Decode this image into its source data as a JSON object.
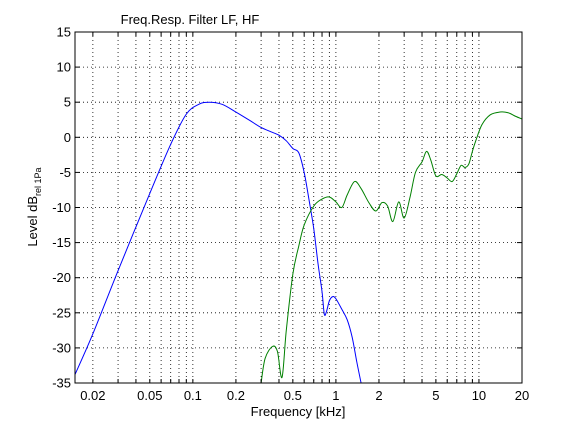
{
  "chart_data": {
    "type": "line",
    "title": "Freq.Resp. Filter LF, HF",
    "xlabel": "Frequency [kHz]",
    "ylabel": {
      "main": "Level dB",
      "subscript": "rel 1Pa"
    },
    "xscale": "log",
    "xlim": [
      0.015,
      20
    ],
    "ylim": [
      -35,
      15
    ],
    "grid": true,
    "x_ticks": [
      0.02,
      0.05,
      0.1,
      0.2,
      0.5,
      1,
      2,
      5,
      10,
      20
    ],
    "x_tick_labels": [
      "0.02",
      "0.05",
      "0.1",
      "0.2",
      "0.5",
      "1",
      "2",
      "5",
      "10",
      "20"
    ],
    "y_ticks": [
      -35,
      -30,
      -25,
      -20,
      -15,
      -10,
      -5,
      0,
      5,
      10,
      15
    ],
    "y_tick_labels": [
      "-35",
      "-30",
      "-25",
      "-20",
      "-15",
      "-10",
      "-5",
      "0",
      "5",
      "10",
      "15"
    ],
    "series": [
      {
        "color": "#0000ff",
        "points": [
          [
            0.015,
            -33.8
          ],
          [
            0.02,
            -28
          ],
          [
            0.03,
            -19
          ],
          [
            0.05,
            -8
          ],
          [
            0.07,
            -1
          ],
          [
            0.09,
            3.3
          ],
          [
            0.11,
            4.7
          ],
          [
            0.13,
            5.0
          ],
          [
            0.16,
            4.7
          ],
          [
            0.2,
            3.6
          ],
          [
            0.25,
            2.4
          ],
          [
            0.3,
            1.4
          ],
          [
            0.35,
            0.8
          ],
          [
            0.4,
            0.3
          ],
          [
            0.45,
            -0.5
          ],
          [
            0.5,
            -1.6
          ],
          [
            0.55,
            -2.2
          ],
          [
            0.6,
            -5
          ],
          [
            0.65,
            -9
          ],
          [
            0.7,
            -13
          ],
          [
            0.75,
            -18
          ],
          [
            0.8,
            -22
          ],
          [
            0.83,
            -25.2
          ],
          [
            0.86,
            -24.8
          ],
          [
            0.9,
            -23.3
          ],
          [
            0.95,
            -22.7
          ],
          [
            1.0,
            -23
          ],
          [
            1.1,
            -24.5
          ],
          [
            1.2,
            -26
          ],
          [
            1.3,
            -28.5
          ],
          [
            1.4,
            -32
          ],
          [
            1.5,
            -35
          ]
        ]
      },
      {
        "color": "#008000",
        "points": [
          [
            0.3,
            -35
          ],
          [
            0.32,
            -31.5
          ],
          [
            0.36,
            -29.8
          ],
          [
            0.39,
            -30.5
          ],
          [
            0.42,
            -34.2
          ],
          [
            0.45,
            -27.5
          ],
          [
            0.5,
            -19.5
          ],
          [
            0.55,
            -15.5
          ],
          [
            0.6,
            -12.5
          ],
          [
            0.7,
            -9.8
          ],
          [
            0.8,
            -8.8
          ],
          [
            0.9,
            -8.5
          ],
          [
            1.0,
            -9.2
          ],
          [
            1.1,
            -10.0
          ],
          [
            1.2,
            -8.2
          ],
          [
            1.35,
            -6.3
          ],
          [
            1.5,
            -7.3
          ],
          [
            1.7,
            -9.3
          ],
          [
            1.9,
            -10.5
          ],
          [
            2.1,
            -9.3
          ],
          [
            2.3,
            -9.8
          ],
          [
            2.5,
            -12.0
          ],
          [
            2.75,
            -9.2
          ],
          [
            3.0,
            -11.5
          ],
          [
            3.3,
            -8.5
          ],
          [
            3.6,
            -5.0
          ],
          [
            4.0,
            -3.5
          ],
          [
            4.3,
            -2.0
          ],
          [
            4.6,
            -3.2
          ],
          [
            5.0,
            -5.5
          ],
          [
            5.5,
            -5.3
          ],
          [
            6.0,
            -5.8
          ],
          [
            6.5,
            -6.3
          ],
          [
            7.0,
            -5.2
          ],
          [
            7.5,
            -4.0
          ],
          [
            8.0,
            -4.3
          ],
          [
            8.5,
            -3.8
          ],
          [
            9.0,
            -2.0
          ],
          [
            9.5,
            -0.5
          ],
          [
            10.5,
            1.8
          ],
          [
            12,
            3.2
          ],
          [
            14,
            3.6
          ],
          [
            16,
            3.5
          ],
          [
            18,
            3.0
          ],
          [
            20,
            2.6
          ]
        ]
      }
    ]
  }
}
